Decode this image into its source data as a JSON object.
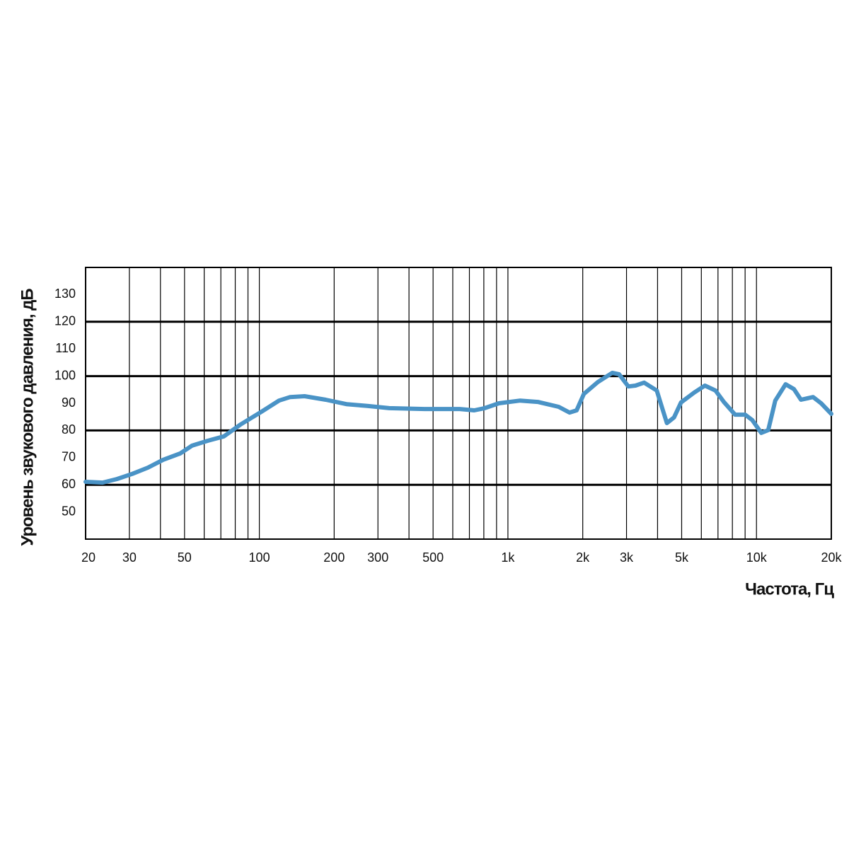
{
  "chart_data": {
    "type": "line",
    "x_label": "Частота, Гц",
    "y_label": "Уровень звукового давления, дБ",
    "log_x": true,
    "xlim": [
      20,
      20000
    ],
    "ylim": [
      40,
      140
    ],
    "xticks": [
      20,
      30,
      50,
      100,
      200,
      300,
      500,
      {
        "value": 1000,
        "label": "1k"
      },
      {
        "value": 2000,
        "label": "2k"
      },
      {
        "value": 3000,
        "label": "3k"
      },
      {
        "value": 5000,
        "label": "5k"
      },
      {
        "value": 10000,
        "label": "10k"
      },
      {
        "value": 20000,
        "label": "20k"
      }
    ],
    "xgrid": [
      30,
      40,
      50,
      60,
      70,
      80,
      90,
      100,
      200,
      300,
      400,
      500,
      600,
      700,
      800,
      900,
      1000,
      2000,
      3000,
      4000,
      5000,
      6000,
      7000,
      8000,
      9000,
      10000
    ],
    "yticks": [
      50,
      60,
      70,
      80,
      90,
      100,
      110,
      120,
      130
    ],
    "ygrid": [
      60,
      80,
      100,
      120
    ],
    "series": [
      {
        "color": "#4a93c6",
        "x": [
          20,
          23.4,
          26.7,
          30.8,
          35.6,
          41,
          48,
          53.6,
          62,
          72,
          84,
          102,
          120,
          133,
          152,
          185,
          224,
          272,
          333,
          462,
          640,
          732,
          806,
          920,
          1120,
          1320,
          1600,
          1770,
          1890,
          2020,
          2300,
          2630,
          2800,
          3050,
          3260,
          3530,
          3970,
          4160,
          4360,
          4660,
          4970,
          5610,
          6200,
          6840,
          7390,
          8200,
          9000,
          9620,
          10450,
          11150,
          11900,
          13100,
          14150,
          15100,
          16900,
          18200,
          20000
        ],
        "values": [
          61.1,
          60.8,
          62.1,
          64,
          66.3,
          69.2,
          71.5,
          74.4,
          76.2,
          77.8,
          82.2,
          86.9,
          91,
          92.3,
          92.6,
          91.3,
          89.7,
          89,
          88.2,
          87.9,
          87.9,
          87.4,
          88.2,
          90,
          91,
          90.5,
          88.7,
          86.6,
          87.4,
          93.4,
          97.8,
          101.2,
          100.7,
          96.2,
          96.5,
          97.6,
          94.7,
          88.7,
          82.7,
          84.8,
          90.3,
          93.9,
          96.5,
          94.7,
          90.5,
          85.8,
          85.8,
          83.8,
          79.1,
          80.1,
          91,
          97,
          95.2,
          91.3,
          92.3,
          90,
          86.1
        ]
      }
    ]
  }
}
